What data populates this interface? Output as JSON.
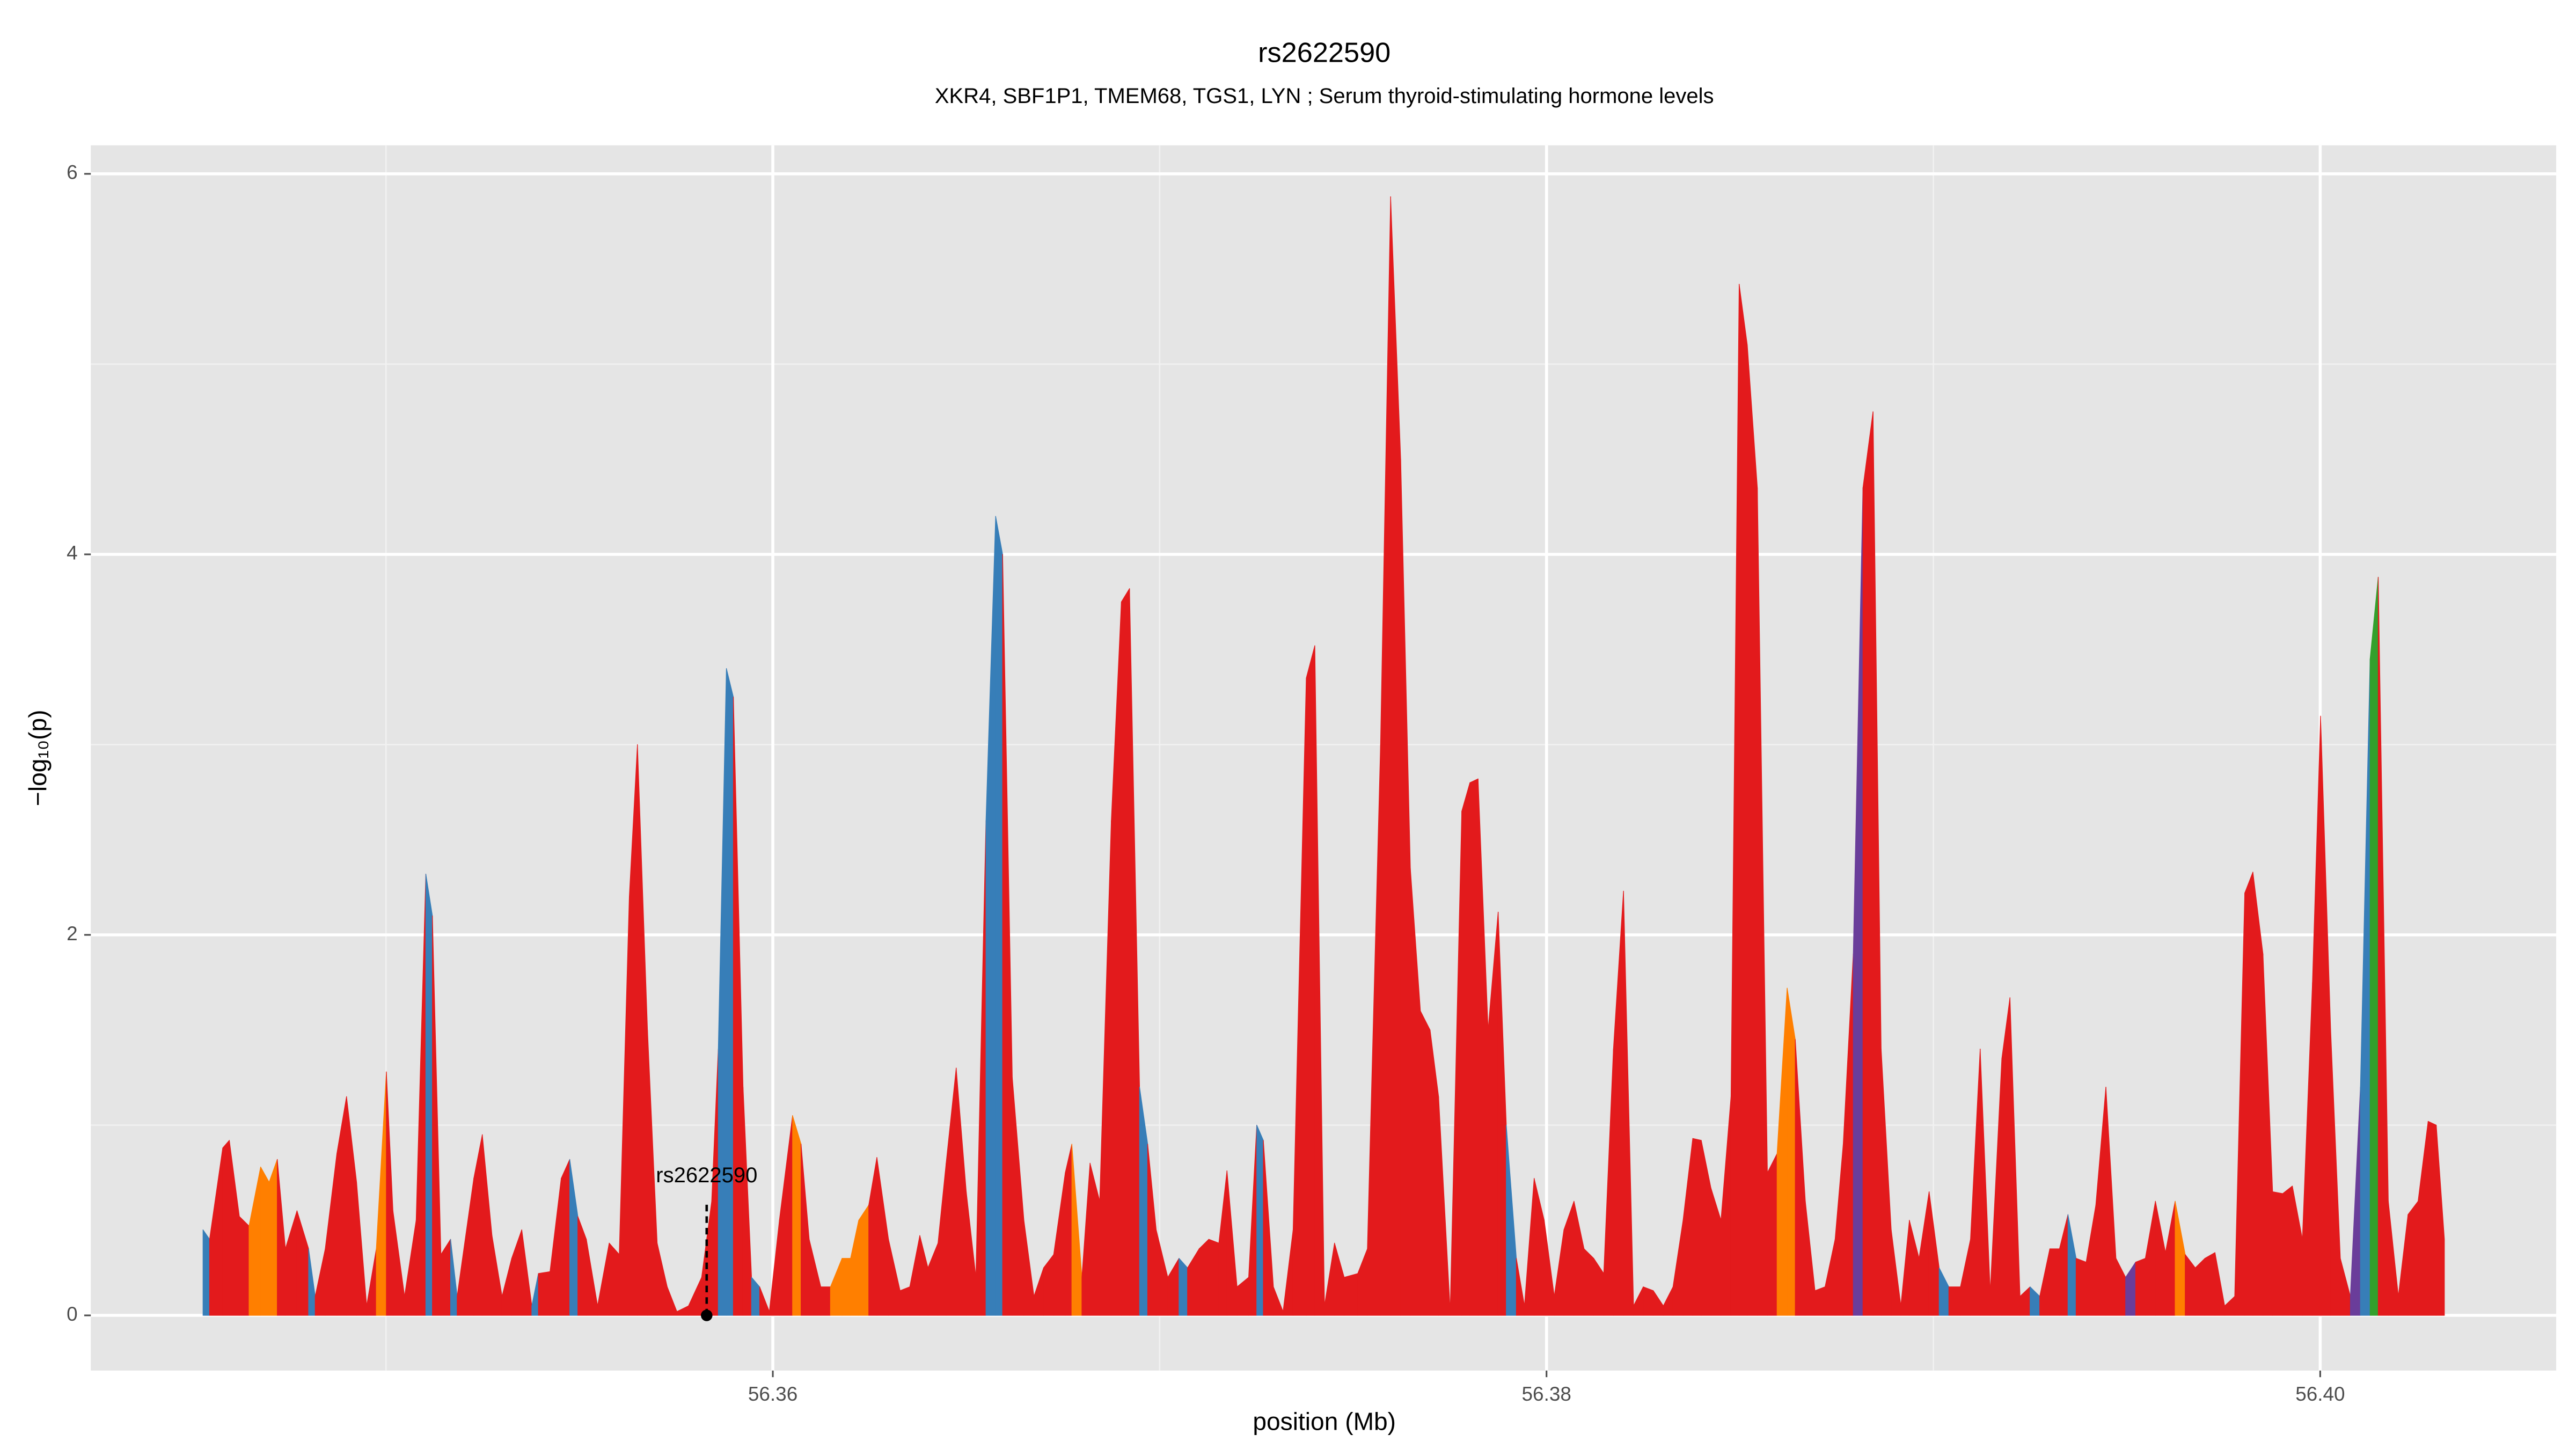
{
  "chart_data": {
    "type": "area",
    "title": "rs2622590",
    "subtitle": "XKR4, SBF1P1, TMEM68, TGS1, LYN ; Serum thyroid-stimulating hormone levels",
    "xlabel": "position (Mb)",
    "ylabel": "−log₁₀(p)",
    "xlim": [
      56.34237,
      56.4061
    ],
    "ylim": [
      -0.29,
      6.15
    ],
    "xticks": [
      56.36,
      56.38,
      {
        "value": 56.4,
        "label": "56.40"
      }
    ],
    "yticks": [
      0,
      2,
      4,
      6
    ],
    "x_minor_grid": [
      56.35,
      56.37,
      56.39
    ],
    "y_minor_grid": [
      1,
      3,
      5
    ],
    "grid": true,
    "annotation": {
      "label": "rs2622590",
      "x": 56.35829,
      "y": 0
    },
    "x": [
      56.34527,
      56.34544,
      56.34578,
      56.34595,
      56.34621,
      56.34646,
      56.34676,
      56.34698,
      56.34719,
      56.3474,
      56.3477,
      56.348,
      56.34817,
      56.34843,
      56.34873,
      56.34898,
      56.34924,
      56.3495,
      56.34975,
      56.35001,
      56.35018,
      56.35048,
      56.35078,
      56.35103,
      56.3512,
      56.35142,
      56.35167,
      56.35184,
      56.35227,
      56.35249,
      56.35274,
      56.353,
      56.35325,
      56.35351,
      56.35377,
      56.35394,
      56.35424,
      56.35453,
      56.35475,
      56.35496,
      56.35518,
      56.35547,
      56.35577,
      56.35603,
      56.35629,
      56.3565,
      56.35676,
      56.35701,
      56.35727,
      56.35752,
      56.35782,
      56.35816,
      56.35842,
      56.35859,
      56.3588,
      56.35898,
      56.35923,
      56.35945,
      56.35966,
      56.35991,
      56.36017,
      56.36051,
      56.36073,
      56.36094,
      56.36124,
      56.36149,
      56.36179,
      56.36201,
      56.36222,
      56.36248,
      56.36269,
      56.36299,
      56.36329,
      56.36354,
      56.3638,
      56.36401,
      56.36427,
      56.36448,
      56.36474,
      56.365,
      56.36525,
      56.36551,
      56.36576,
      56.36594,
      56.36619,
      56.36649,
      56.36675,
      56.367,
      56.36726,
      56.36756,
      56.36773,
      56.36799,
      56.3682,
      56.36845,
      56.36875,
      56.36901,
      56.36922,
      56.36948,
      56.36969,
      56.36991,
      56.37021,
      56.3705,
      56.37072,
      56.37102,
      56.37127,
      56.37153,
      56.37174,
      56.372,
      56.3723,
      56.37251,
      56.37268,
      56.37294,
      56.37319,
      56.37345,
      56.37379,
      56.37401,
      56.37426,
      56.37452,
      56.37477,
      56.37512,
      56.37537,
      56.37571,
      56.37597,
      56.37623,
      56.37648,
      56.37674,
      56.37699,
      56.37721,
      56.37751,
      56.37781,
      56.37802,
      56.37823,
      56.37849,
      56.37875,
      56.37896,
      56.37922,
      56.37943,
      56.37968,
      56.37994,
      56.3802,
      56.38045,
      56.38071,
      56.38097,
      56.38122,
      56.38148,
      56.38173,
      56.38199,
      56.38225,
      56.3825,
      56.38276,
      56.38302,
      56.38327,
      56.38353,
      56.38378,
      56.384,
      56.38425,
      56.38451,
      56.38477,
      56.38498,
      56.38519,
      56.38545,
      56.38571,
      56.38596,
      56.38622,
      56.38643,
      56.38669,
      56.38694,
      56.3872,
      56.38746,
      56.38767,
      56.38793,
      56.38818,
      56.38844,
      56.38865,
      56.38891,
      56.38916,
      56.38938,
      56.38963,
      56.38989,
      56.39015,
      56.3904,
      56.3907,
      56.39096,
      56.39121,
      56.39147,
      56.39177,
      56.39198,
      56.39224,
      56.3925,
      56.39275,
      56.39301,
      56.39326,
      56.39348,
      56.39369,
      56.39395,
      56.3942,
      56.39446,
      56.39472,
      56.39497,
      56.39523,
      56.39548,
      56.39574,
      56.396,
      56.39625,
      56.39651,
      56.39677,
      56.39702,
      56.39728,
      56.39753,
      56.39779,
      56.39805,
      56.39826,
      56.39852,
      56.39877,
      56.39903,
      56.39928,
      56.39954,
      56.3998,
      56.40001,
      56.40027,
      56.40052,
      56.40078,
      56.40104,
      56.40129,
      56.4015,
      56.40176,
      56.40202,
      56.40227,
      56.40253,
      56.40279,
      56.403,
      56.40321
    ],
    "values": [
      0.45,
      0.4,
      0.88,
      0.92,
      0.52,
      0.47,
      0.78,
      0.7,
      0.82,
      0.35,
      0.55,
      0.35,
      0.1,
      0.35,
      0.85,
      1.15,
      0.7,
      0.05,
      0.35,
      1.28,
      0.55,
      0.1,
      0.5,
      2.32,
      2.1,
      0.32,
      0.4,
      0.1,
      0.72,
      0.95,
      0.42,
      0.1,
      0.3,
      0.45,
      0.05,
      0.22,
      0.23,
      0.72,
      0.82,
      0.52,
      0.4,
      0.05,
      0.38,
      0.32,
      2.2,
      3.0,
      1.5,
      0.38,
      0.15,
      0.02,
      0.05,
      0.2,
      0.6,
      1.4,
      3.4,
      3.25,
      1.2,
      0.2,
      0.15,
      0.02,
      0.5,
      1.05,
      0.9,
      0.4,
      0.15,
      0.15,
      0.3,
      0.3,
      0.5,
      0.58,
      0.83,
      0.4,
      0.13,
      0.15,
      0.42,
      0.25,
      0.38,
      0.8,
      1.3,
      0.65,
      0.2,
      2.6,
      4.2,
      4.0,
      1.25,
      0.5,
      0.1,
      0.25,
      0.32,
      0.75,
      0.9,
      0.2,
      0.8,
      0.6,
      2.6,
      3.75,
      3.82,
      1.2,
      0.9,
      0.45,
      0.2,
      0.3,
      0.25,
      0.35,
      0.4,
      0.38,
      0.76,
      0.15,
      0.2,
      1.0,
      0.92,
      0.15,
      0.02,
      0.45,
      3.35,
      3.52,
      0.05,
      0.38,
      0.2,
      0.22,
      0.35,
      3.0,
      5.88,
      4.5,
      2.35,
      1.6,
      1.5,
      1.15,
      0.02,
      2.65,
      2.8,
      2.82,
      1.5,
      2.12,
      1.0,
      0.3,
      0.05,
      0.72,
      0.5,
      0.1,
      0.45,
      0.6,
      0.35,
      0.3,
      0.22,
      1.4,
      2.23,
      0.05,
      0.15,
      0.13,
      0.05,
      0.15,
      0.5,
      0.93,
      0.92,
      0.67,
      0.5,
      1.15,
      5.42,
      5.1,
      4.35,
      0.75,
      0.85,
      1.72,
      1.45,
      0.6,
      0.13,
      0.15,
      0.4,
      0.9,
      1.9,
      4.35,
      4.75,
      1.4,
      0.45,
      0.05,
      0.5,
      0.3,
      0.65,
      0.25,
      0.15,
      0.15,
      0.4,
      1.4,
      0.12,
      1.35,
      1.67,
      0.1,
      0.15,
      0.1,
      0.35,
      0.35,
      0.53,
      0.3,
      0.28,
      0.58,
      1.2,
      0.3,
      0.2,
      0.28,
      0.3,
      0.6,
      0.33,
      0.6,
      0.32,
      0.25,
      0.3,
      0.33,
      0.05,
      0.1,
      2.22,
      2.33,
      1.9,
      0.65,
      0.64,
      0.68,
      0.4,
      1.75,
      3.15,
      1.5,
      0.3,
      0.1,
      1.2,
      3.45,
      3.88,
      0.6,
      0.1,
      0.53,
      0.6,
      1.02,
      1.0,
      0.4
    ],
    "colors": [
      "#377eb8",
      "#e31a1c",
      "#e31a1c",
      "#e31a1c",
      "#e31a1c",
      "#ff7f00",
      "#ff7f00",
      "#ff7f00",
      "#e31a1c",
      "#e31a1c",
      "#e31a1c",
      "#377eb8",
      "#e31a1c",
      "#e31a1c",
      "#e31a1c",
      "#e31a1c",
      "#e31a1c",
      "#e31a1c",
      "#ff7f00",
      "#e31a1c",
      "#e31a1c",
      "#e31a1c",
      "#e31a1c",
      "#377eb8",
      "#e31a1c",
      "#e31a1c",
      "#377eb8",
      "#e31a1c",
      "#e31a1c",
      "#e31a1c",
      "#e31a1c",
      "#e31a1c",
      "#e31a1c",
      "#e31a1c",
      "#377eb8",
      "#e31a1c",
      "#e31a1c",
      "#e31a1c",
      "#377eb8",
      "#e31a1c",
      "#e31a1c",
      "#e31a1c",
      "#e31a1c",
      "#e31a1c",
      "#e31a1c",
      "#e31a1c",
      "#e31a1c",
      "#e31a1c",
      "#e31a1c",
      "#e31a1c",
      "#e31a1c",
      "#e31a1c",
      "#e31a1c",
      "#377eb8",
      "#377eb8",
      "#e31a1c",
      "#e31a1c",
      "#377eb8",
      "#e31a1c",
      "#e31a1c",
      "#e31a1c",
      "#ff7f00",
      "#e31a1c",
      "#e31a1c",
      "#e31a1c",
      "#ff7f00",
      "#ff7f00",
      "#ff7f00",
      "#ff7f00",
      "#e31a1c",
      "#e31a1c",
      "#e31a1c",
      "#e31a1c",
      "#e31a1c",
      "#e31a1c",
      "#e31a1c",
      "#e31a1c",
      "#e31a1c",
      "#e31a1c",
      "#e31a1c",
      "#e31a1c",
      "#377eb8",
      "#377eb8",
      "#e31a1c",
      "#e31a1c",
      "#e31a1c",
      "#e31a1c",
      "#e31a1c",
      "#e31a1c",
      "#e31a1c",
      "#ff7f00",
      "#e31a1c",
      "#e31a1c",
      "#e31a1c",
      "#e31a1c",
      "#e31a1c",
      "#e31a1c",
      "#377eb8",
      "#e31a1c",
      "#e31a1c",
      "#e31a1c",
      "#377eb8",
      "#e31a1c",
      "#e31a1c",
      "#e31a1c",
      "#e31a1c",
      "#e31a1c",
      "#e31a1c",
      "#e31a1c",
      "#377eb8",
      "#e31a1c",
      "#e31a1c",
      "#e31a1c",
      "#e31a1c",
      "#e31a1c",
      "#e31a1c",
      "#e31a1c",
      "#e31a1c",
      "#e31a1c",
      "#e31a1c",
      "#e31a1c",
      "#e31a1c",
      "#e31a1c",
      "#e31a1c",
      "#e31a1c",
      "#e31a1c",
      "#e31a1c",
      "#e31a1c",
      "#e31a1c",
      "#e31a1c",
      "#e31a1c",
      "#e31a1c",
      "#e31a1c",
      "#e31a1c",
      "#377eb8",
      "#e31a1c",
      "#e31a1c",
      "#e31a1c",
      "#e31a1c",
      "#e31a1c",
      "#e31a1c",
      "#e31a1c",
      "#e31a1c",
      "#e31a1c",
      "#e31a1c",
      "#e31a1c",
      "#e31a1c",
      "#e31a1c",
      "#e31a1c",
      "#e31a1c",
      "#e31a1c",
      "#e31a1c",
      "#e31a1c",
      "#e31a1c",
      "#e31a1c",
      "#e31a1c",
      "#e31a1c",
      "#e31a1c",
      "#e31a1c",
      "#e31a1c",
      "#e31a1c",
      "#e31a1c",
      "#ff7f00",
      "#ff7f00",
      "#e31a1c",
      "#e31a1c",
      "#e31a1c",
      "#e31a1c",
      "#e31a1c",
      "#e31a1c",
      "#6a3d9a",
      "#e31a1c",
      "#e31a1c",
      "#e31a1c",
      "#e31a1c",
      "#e31a1c",
      "#e31a1c",
      "#e31a1c",
      "#e31a1c",
      "#377eb8",
      "#e31a1c",
      "#e31a1c",
      "#e31a1c",
      "#e31a1c",
      "#e31a1c",
      "#e31a1c",
      "#e31a1c",
      "#e31a1c",
      "#377eb8",
      "#e31a1c",
      "#e31a1c",
      "#e31a1c",
      "#377eb8",
      "#e31a1c",
      "#e31a1c",
      "#e31a1c",
      "#e31a1c",
      "#e31a1c",
      "#6a3d9a",
      "#e31a1c",
      "#e31a1c",
      "#e31a1c",
      "#e31a1c",
      "#ff7f00",
      "#e31a1c",
      "#e31a1c",
      "#e31a1c",
      "#e31a1c",
      "#e31a1c",
      "#e31a1c",
      "#e31a1c",
      "#e31a1c",
      "#e31a1c",
      "#e31a1c",
      "#e31a1c",
      "#e31a1c",
      "#e31a1c",
      "#e31a1c",
      "#e31a1c",
      "#e31a1c",
      "#e31a1c",
      "#6a3d9a",
      "#377eb8",
      "#33a02c",
      "#e31a1c",
      "#e31a1c",
      "#e31a1c",
      "#e31a1c",
      "#e31a1c",
      "#e31a1c",
      "#e31a1c"
    ]
  }
}
